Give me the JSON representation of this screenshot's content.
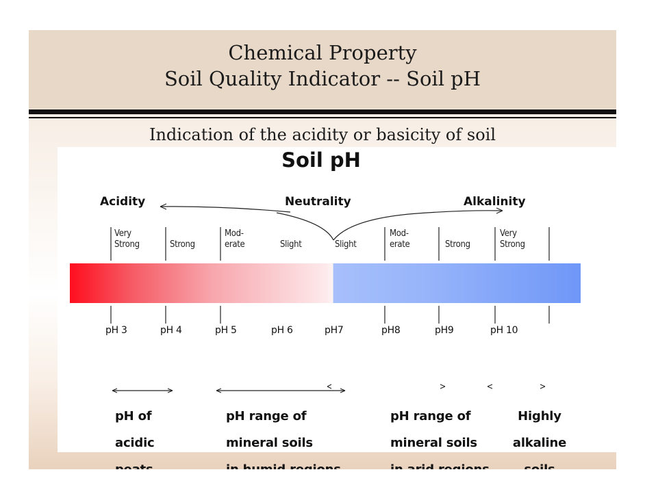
{
  "header": {
    "title_line1": "Chemical Property",
    "title_line2": "Soil Quality Indicator -- Soil pH"
  },
  "subtitle": "Indication of the acidity or basicity of soil",
  "figure": {
    "title": "Soil pH",
    "zones": {
      "acidity": "Acidity",
      "neutrality": "Neutrality",
      "alkalinity": "Alkalinity"
    },
    "strengths": [
      {
        "line1": "Very",
        "line2": "Strong"
      },
      {
        "line1": "",
        "line2": "Strong"
      },
      {
        "line1": "Mod-",
        "line2": "erate"
      },
      {
        "line1": "",
        "line2": "Slight"
      },
      {
        "line1": "",
        "line2": "Slight"
      },
      {
        "line1": "Mod-",
        "line2": "erate"
      },
      {
        "line1": "",
        "line2": "Strong"
      },
      {
        "line1": "Very",
        "line2": "Strong"
      }
    ],
    "ph_labels": [
      "pH 3",
      "pH 4",
      "pH 5",
      "pH 6",
      "pH7",
      "pH8",
      "pH9",
      "pH 10"
    ],
    "colors": {
      "acid": "#ff0e1e",
      "neutral": "#fdf3f4",
      "alkaline": "#6f97f8"
    },
    "descriptions": [
      {
        "line1": "pH of",
        "line2": "acidic",
        "line3": "peats"
      },
      {
        "line1": "pH range of",
        "line2": "mineral soils",
        "line3": "in humid regions"
      },
      {
        "line1": "pH range of",
        "line2": "mineral soils",
        "line3": "in arid regions"
      },
      {
        "line1": "Highly",
        "line2": "alkaline",
        "line3": "soils"
      }
    ]
  }
}
